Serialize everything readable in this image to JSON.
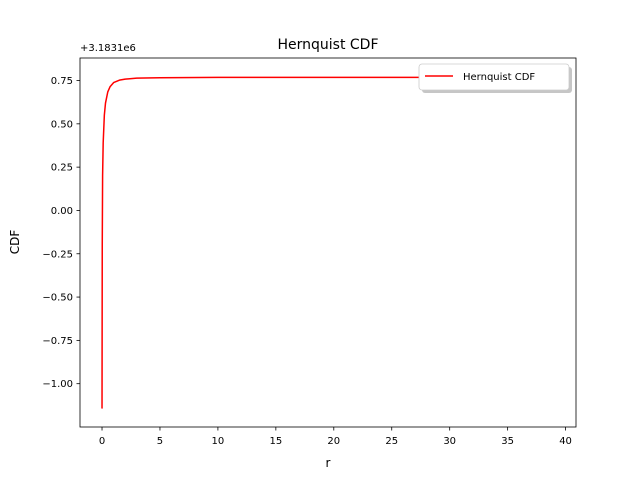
{
  "chart_data": {
    "type": "line",
    "title": "Hernquist CDF",
    "xlabel": "r",
    "ylabel": "CDF",
    "offset_label": "+3.1831e6",
    "xlim": [
      -1.9,
      40.9
    ],
    "ylim": [
      -1.25,
      0.88
    ],
    "x_ticks": [
      0,
      5,
      10,
      15,
      20,
      25,
      30,
      35,
      40
    ],
    "x_tick_labels": [
      "0",
      "5",
      "10",
      "15",
      "20",
      "25",
      "30",
      "35",
      "40"
    ],
    "y_ticks": [
      -1.0,
      -0.75,
      -0.5,
      -0.25,
      0.0,
      0.25,
      0.5,
      0.75
    ],
    "y_tick_labels": [
      "−1.00",
      "−0.75",
      "−0.50",
      "−0.25",
      "0.00",
      "0.25",
      "0.50",
      "0.75"
    ],
    "grid": false,
    "legend_position": "upper right",
    "series": [
      {
        "name": "Hernquist CDF",
        "color": "#ff0000",
        "x": [
          0.0,
          0.02,
          0.05,
          0.1,
          0.2,
          0.3,
          0.5,
          0.7,
          1.0,
          1.5,
          2.0,
          3.0,
          5.0,
          10.0,
          20.0,
          30.0,
          40.0
        ],
        "y": [
          -1.14,
          -0.2,
          0.2,
          0.39,
          0.55,
          0.62,
          0.685,
          0.715,
          0.738,
          0.752,
          0.758,
          0.764,
          0.766,
          0.768,
          0.768,
          0.768,
          0.768
        ]
      }
    ]
  }
}
